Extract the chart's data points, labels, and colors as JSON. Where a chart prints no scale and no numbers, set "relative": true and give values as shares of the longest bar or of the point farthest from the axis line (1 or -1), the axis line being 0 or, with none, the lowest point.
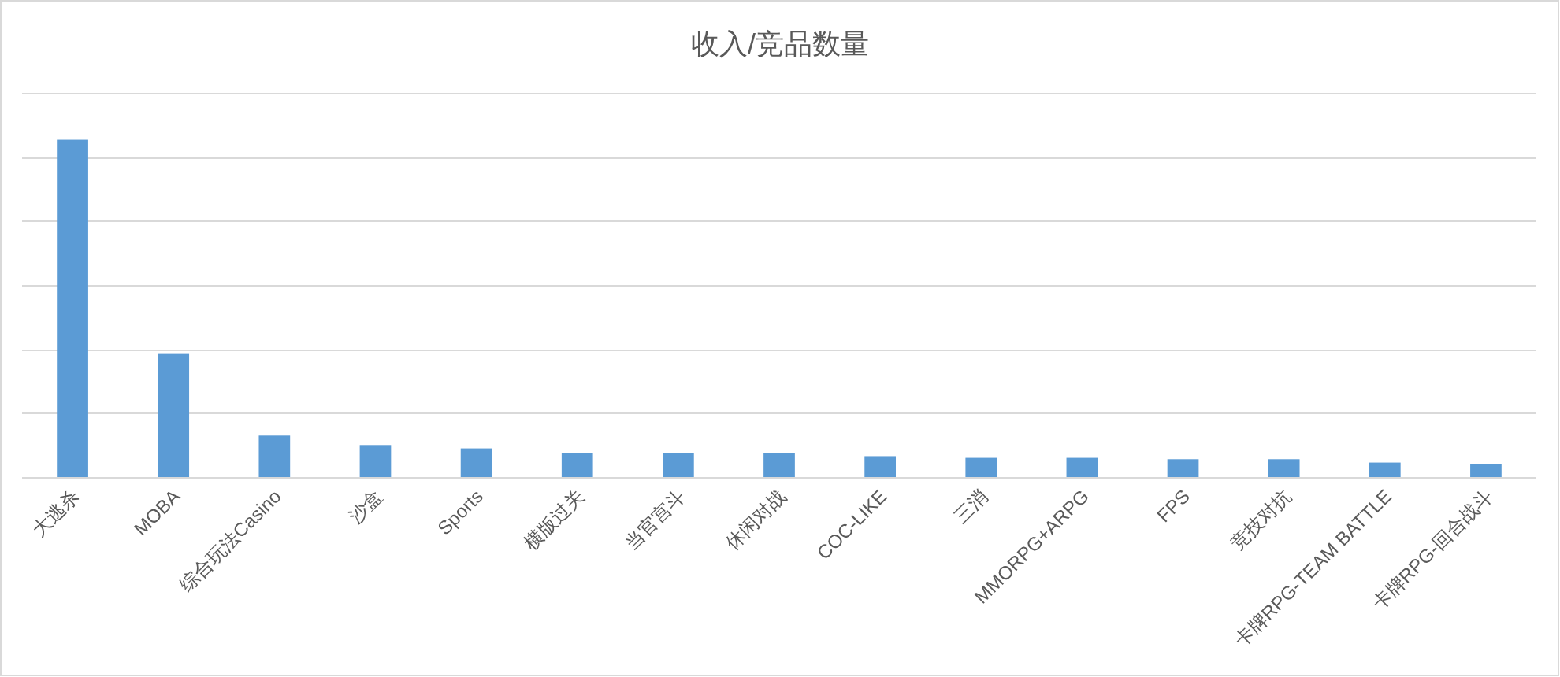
{
  "chart_data": {
    "type": "bar",
    "title": "收入/竞品数量",
    "categories": [
      "大逃杀",
      "MOBA",
      "综合玩法Casino",
      "沙盒",
      "Sports",
      "横版过关",
      "当官宫斗",
      "休闲对战",
      "COC-LIKE",
      "三消",
      "MMORPG+ARPG",
      "FPS",
      "竞技对抗",
      "卡牌RPG-TEAM BATTLE",
      "卡牌RPG-回合战斗"
    ],
    "values": [
      1,
      0.365,
      0.123,
      0.095,
      0.085,
      0.071,
      0.071,
      0.071,
      0.062,
      0.057,
      0.057,
      0.053,
      0.053,
      0.043,
      0.039
    ],
    "color": "#5b9bd5",
    "relative": true,
    "grid": "y"
  }
}
